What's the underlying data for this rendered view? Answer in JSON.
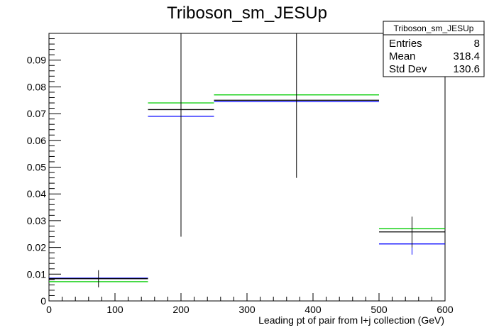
{
  "chart_data": {
    "type": "histogram",
    "title": "Triboson_sm_JESUp",
    "xlabel": "Leading pt of pair from l+j collection (GeV)",
    "ylabel": "",
    "xlim": [
      0,
      600
    ],
    "ylim": [
      0,
      0.1
    ],
    "x_ticks": [
      0,
      100,
      200,
      300,
      400,
      500,
      600
    ],
    "y_ticks": [
      0,
      0.01,
      0.02,
      0.03,
      0.04,
      0.05,
      0.06,
      0.07,
      0.08,
      0.09
    ],
    "y_tick_labels": [
      "0",
      "0.01",
      "0.02",
      "0.03",
      "0.04",
      "0.05",
      "0.06",
      "0.07",
      "0.08",
      "0.09"
    ],
    "bin_edges": [
      0,
      150,
      250,
      500,
      600
    ],
    "series": [
      {
        "color": "#000000",
        "values": [
          0.0083,
          0.0715,
          0.075,
          0.0258
        ],
        "errors": [
          [
            0.0051,
            0.0115
          ],
          [
            0.024,
            0.1
          ],
          [
            0.046,
            0.1
          ],
          [
            0.02,
            0.0315
          ]
        ]
      },
      {
        "color": "#0000ff",
        "values": [
          0.0085,
          0.069,
          0.0745,
          0.0213
        ],
        "errors": [
          null,
          null,
          null,
          [
            0.0173,
            0.0255
          ]
        ]
      },
      {
        "color": "#00cc00",
        "values": [
          0.0072,
          0.074,
          0.077,
          0.027
        ],
        "errors": [
          null,
          null,
          null,
          null
        ]
      }
    ],
    "stats_box": {
      "title": "Triboson_sm_JESUp",
      "rows": [
        {
          "label": "Entries",
          "value": "8"
        },
        {
          "label": "Mean",
          "value": "318.4"
        },
        {
          "label": "Std Dev",
          "value": "130.6"
        }
      ]
    }
  }
}
